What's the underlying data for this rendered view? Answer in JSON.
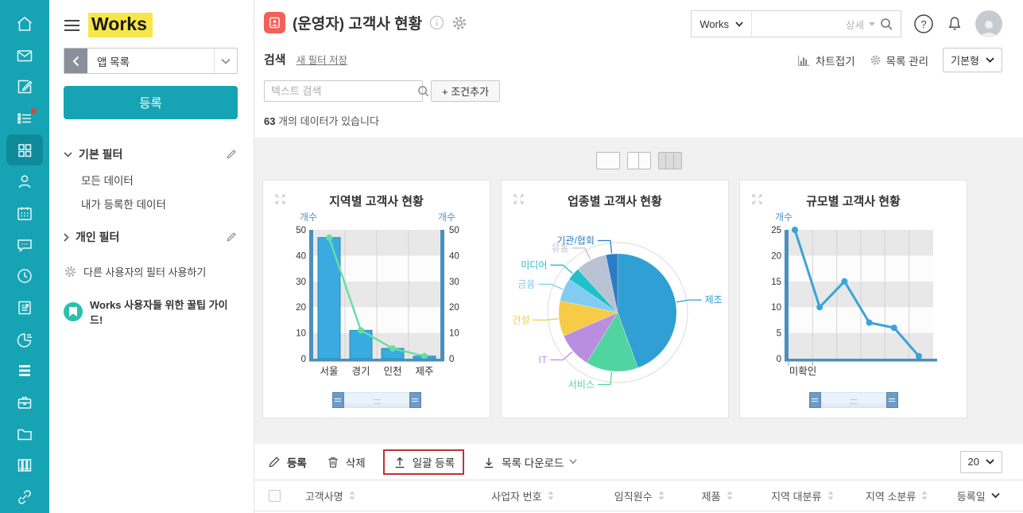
{
  "colors": {
    "sidebar_teal": "#16A4B4",
    "sidebar_active": "#0E8A9B",
    "logo_highlight": "#F6E649",
    "app_icon_red": "#F2605A",
    "bulk_highlight_red": "#BE3333",
    "notification_red": "#E8402F",
    "axis_label_blue": "#4E93C8"
  },
  "rail": {
    "active_item": "apps",
    "items": [
      "home",
      "mail",
      "compose",
      "tasks",
      "apps",
      "contacts",
      "calendar",
      "chat",
      "history",
      "note",
      "report",
      "list",
      "work",
      "folder",
      "archive",
      "link"
    ]
  },
  "panel": {
    "logo": "Works",
    "app_list_label": "앱 목록",
    "register_button": "등록",
    "basic_filter": {
      "label": "기본 필터",
      "items": [
        "모든 데이터",
        "내가 등록한 데이터"
      ]
    },
    "personal_filter": {
      "label": "개인 필터"
    },
    "other_filter_link": "다른 사용자의 필터 사용하기",
    "tip_link": "Works 사용자들 위한 꿀팁 가이드!"
  },
  "header": {
    "title": "(운영자) 고객사 현황",
    "workspace_select": "Works",
    "detail_label": "상세",
    "help_label": "?",
    "search_section_label": "검색",
    "save_filter_link": "새 필터 저장",
    "text_search_placeholder": "텍스트 검색",
    "add_condition_button": "+ 조건추가",
    "result_count_number": "63",
    "result_count_text": "개의 데이터가 있습니다",
    "chart_fold_button": "차트접기",
    "list_manage_button": "목록 관리",
    "view_type_select": "기본형"
  },
  "toolbar": {
    "register": "등록",
    "delete": "삭제",
    "bulk_register": "일괄 등록",
    "download_list": "목록 다운로드",
    "page_size": "20"
  },
  "table": {
    "columns": [
      {
        "label": "고객사명",
        "sort": "both"
      },
      {
        "label": "사업자 번호",
        "sort": "both"
      },
      {
        "label": "임직원수",
        "sort": "both"
      },
      {
        "label": "제품",
        "sort": "both"
      },
      {
        "label": "지역 대분류",
        "sort": "both"
      },
      {
        "label": "지역 소분류",
        "sort": "both"
      },
      {
        "label": "등록일",
        "sort": "desc"
      }
    ]
  },
  "chart_data": [
    {
      "type": "bar",
      "title": "지역별 고객사 현황",
      "categories": [
        "서울",
        "경기",
        "인천",
        "제주"
      ],
      "series": [
        {
          "name": "개수",
          "type": "bar",
          "values": [
            47,
            11,
            4,
            1
          ]
        },
        {
          "name": "개수",
          "type": "line",
          "values": [
            47,
            11,
            4,
            1
          ]
        }
      ],
      "ylabel_left": "개수",
      "ylabel_right": "개수",
      "ylim": [
        0,
        50
      ],
      "yticks": [
        0,
        10,
        20,
        30,
        40,
        50
      ],
      "bar_color": "#3AABDF",
      "line_color": "#63DFA5",
      "axis_color": "#4A8FBE",
      "has_scrollbar": true
    },
    {
      "type": "pie",
      "title": "업종별 고객사 현황",
      "slices": [
        {
          "label": "제조",
          "percent": 44.4,
          "color": "#309FD3"
        },
        {
          "label": "서비스",
          "percent": 14.4,
          "color": "#50D5A0"
        },
        {
          "label": "IT",
          "percent": 9.7,
          "color": "#B98EE0"
        },
        {
          "label": "건설",
          "percent": 9.7,
          "color": "#F6CB45"
        },
        {
          "label": "금융",
          "percent": 6.4,
          "color": "#83CCF1"
        },
        {
          "label": "미디어",
          "percent": 3.6,
          "color": "#20C1C9"
        },
        {
          "label": "유통",
          "percent": 8.6,
          "color": "#B9C3D3"
        },
        {
          "label": "기관/협회",
          "percent": 3.2,
          "color": "#2B7CC4"
        }
      ],
      "ring_color": "#DBDBDB"
    },
    {
      "type": "line",
      "title": "규모별 고객사 현황",
      "categories": [
        "미확인",
        "",
        "",
        "",
        "",
        ""
      ],
      "series": [
        {
          "name": "개수",
          "type": "line",
          "values": [
            25,
            10,
            15,
            7,
            6,
            0.5
          ]
        }
      ],
      "ylabel_left": "개수",
      "ylim": [
        0,
        25
      ],
      "yticks": [
        0,
        5,
        10,
        15,
        20,
        25
      ],
      "line_color": "#3AA3DB",
      "axis_color": "#4A8FBE",
      "has_scrollbar": true
    }
  ]
}
